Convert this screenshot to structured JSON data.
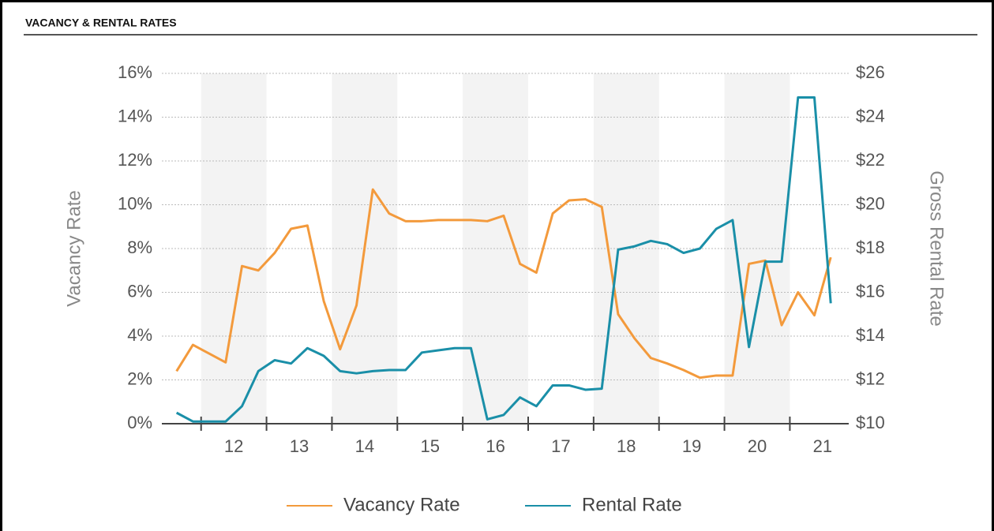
{
  "chart_data": {
    "type": "line",
    "title": "VACANCY & RENTAL RATES",
    "ylabel": "Vacancy Rate",
    "y2label": "Gross Rental Rate",
    "x": [
      11.625,
      11.875,
      12.125,
      12.375,
      12.625,
      12.875,
      13.125,
      13.375,
      13.625,
      13.875,
      14.125,
      14.375,
      14.625,
      14.875,
      15.125,
      15.375,
      15.625,
      15.875,
      16.125,
      16.375,
      16.625,
      16.875,
      17.125,
      17.375,
      17.625,
      17.875,
      18.125,
      18.375,
      18.625,
      18.875,
      19.125,
      19.375,
      19.625,
      19.875,
      20.125,
      20.375,
      20.625,
      20.875,
      21.125,
      21.375,
      21.625
    ],
    "xlim": [
      11.4,
      21.9
    ],
    "xticks": [
      {
        "value": 12.5,
        "label": "12"
      },
      {
        "value": 13.5,
        "label": "13"
      },
      {
        "value": 14.5,
        "label": "14"
      },
      {
        "value": 15.5,
        "label": "15"
      },
      {
        "value": 16.5,
        "label": "16"
      },
      {
        "value": 17.5,
        "label": "17"
      },
      {
        "value": 18.5,
        "label": "18"
      },
      {
        "value": 19.5,
        "label": "19"
      },
      {
        "value": 20.5,
        "label": "20"
      },
      {
        "value": 21.5,
        "label": "21"
      }
    ],
    "ylim": [
      0,
      16
    ],
    "yticks": [
      {
        "value": 0,
        "label": "0%"
      },
      {
        "value": 2,
        "label": "2%"
      },
      {
        "value": 4,
        "label": "4%"
      },
      {
        "value": 6,
        "label": "6%"
      },
      {
        "value": 8,
        "label": "8%"
      },
      {
        "value": 10,
        "label": "10%"
      },
      {
        "value": 12,
        "label": "12%"
      },
      {
        "value": 14,
        "label": "14%"
      },
      {
        "value": 16,
        "label": "16%"
      }
    ],
    "y2lim": [
      10,
      26
    ],
    "y2ticks": [
      {
        "value": 10,
        "label": "$10"
      },
      {
        "value": 12,
        "label": "$12"
      },
      {
        "value": 14,
        "label": "$14"
      },
      {
        "value": 16,
        "label": "$16"
      },
      {
        "value": 18,
        "label": "$18"
      },
      {
        "value": 20,
        "label": "$20"
      },
      {
        "value": 22,
        "label": "$22"
      },
      {
        "value": 24,
        "label": "$24"
      },
      {
        "value": 26,
        "label": "$26"
      }
    ],
    "grid": true,
    "series": [
      {
        "name": "Vacancy Rate",
        "color": "#f39a3c",
        "values": [
          2.4,
          3.6,
          3.2,
          2.8,
          7.2,
          7.0,
          7.8,
          8.9,
          9.05,
          5.6,
          3.4,
          5.4,
          10.7,
          9.6,
          9.25,
          9.25,
          9.3,
          9.3,
          9.3,
          9.25,
          9.5,
          7.3,
          6.9,
          9.6,
          10.2,
          10.25,
          9.9,
          5.0,
          3.9,
          3.0,
          2.75,
          2.45,
          2.1,
          2.2,
          2.2,
          7.3,
          7.45,
          4.5,
          6.0,
          4.95,
          7.6
        ]
      },
      {
        "name": "Rental Rate",
        "color": "#1a8fa8",
        "axis": "y2",
        "values": [
          10.5,
          10.1,
          10.1,
          10.1,
          10.8,
          12.4,
          12.9,
          12.75,
          13.45,
          13.1,
          12.4,
          12.3,
          12.4,
          12.45,
          12.45,
          13.25,
          13.35,
          13.45,
          13.45,
          10.2,
          10.4,
          11.2,
          10.8,
          11.75,
          11.75,
          11.55,
          11.6,
          17.95,
          18.1,
          18.35,
          18.2,
          17.8,
          18.0,
          18.9,
          19.3,
          13.5,
          17.4,
          17.4,
          24.9,
          24.9,
          15.5
        ]
      }
    ]
  }
}
